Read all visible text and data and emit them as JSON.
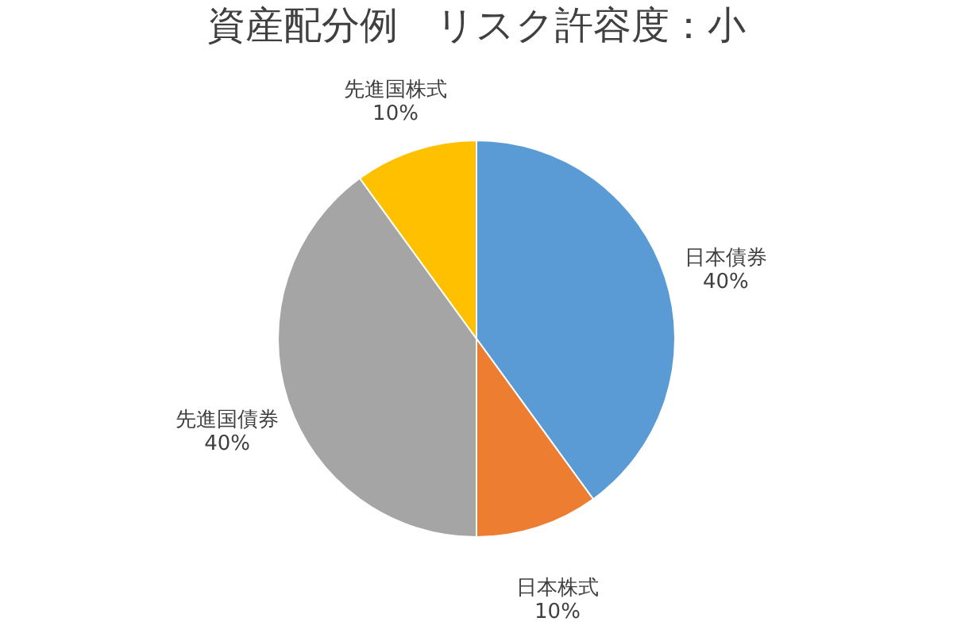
{
  "chart_data": {
    "type": "pie",
    "title": "資産配分例　リスク許容度：小",
    "categories": [
      "日本債券",
      "日本株式",
      "先進国債券",
      "先進国株式"
    ],
    "values": [
      40,
      10,
      40,
      10
    ],
    "colors": [
      "#5b9bd5",
      "#ed7d31",
      "#a5a5a5",
      "#ffc000"
    ],
    "value_labels": [
      "40%",
      "10%",
      "40%",
      "10%"
    ],
    "legend": false
  }
}
